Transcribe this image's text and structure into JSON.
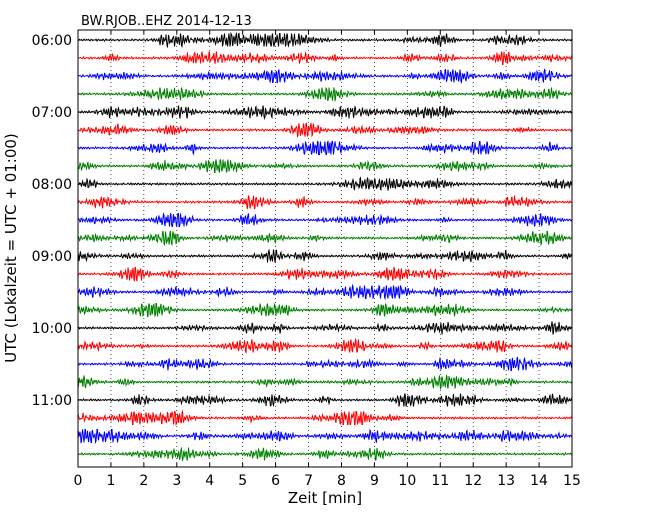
{
  "chart_data": {
    "type": "line",
    "title": "BW.RJOB..EHZ 2014-12-13",
    "xlabel": "Zeit  [min]",
    "ylabel": "UTC (Lokalzeit = UTC + 01:00)",
    "xlim": [
      0,
      15
    ],
    "x_ticks": [
      "0",
      "1",
      "2",
      "3",
      "4",
      "5",
      "6",
      "7",
      "8",
      "9",
      "10",
      "11",
      "12",
      "13",
      "14",
      "15"
    ],
    "y_ticks": [
      "06:00",
      "07:00",
      "08:00",
      "09:00",
      "10:00",
      "11:00"
    ],
    "grid": true,
    "trace_start_times": [
      "06:00",
      "06:15",
      "06:30",
      "06:45",
      "07:00",
      "07:15",
      "07:30",
      "07:45",
      "08:00",
      "08:15",
      "08:30",
      "08:45",
      "09:00",
      "09:15",
      "09:30",
      "09:45",
      "10:00",
      "10:15",
      "10:30",
      "10:45",
      "11:00",
      "11:15",
      "11:30",
      "11:45"
    ],
    "trace_colors": [
      "#000000",
      "#ff0000",
      "#0000ff",
      "#008000"
    ],
    "trace_minutes_per_line": 15
  }
}
